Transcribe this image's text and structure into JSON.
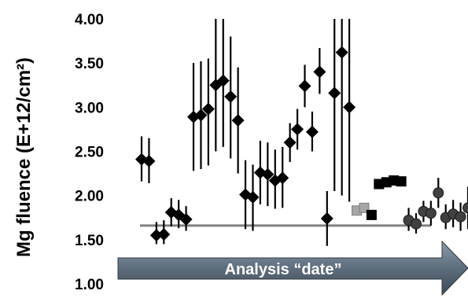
{
  "chart_data": {
    "type": "scatter",
    "title": "",
    "xlabel": "",
    "ylabel": "Mg fluence (E+12/cm²)",
    "ylim": [
      1.0,
      4.0
    ],
    "yticks": [
      "1.00",
      "1.50",
      "2.00",
      "2.50",
      "3.00",
      "3.50",
      "4.00"
    ],
    "grid": false,
    "x_axis_arrow_label": "Analysis “date”",
    "reference_line": {
      "y": 1.66,
      "color": "#808080"
    },
    "series": [
      {
        "marker": "diamond",
        "color": "#000000",
        "points": [
          {
            "x": 1,
            "y": 2.41,
            "lo": 2.16,
            "hi": 2.67
          },
          {
            "x": 2,
            "y": 2.39,
            "lo": 2.14,
            "hi": 2.65
          },
          {
            "x": 3,
            "y": 1.55,
            "lo": 1.45,
            "hi": 1.7
          },
          {
            "x": 4,
            "y": 1.56,
            "lo": 1.45,
            "hi": 1.72
          },
          {
            "x": 5,
            "y": 1.81,
            "lo": 1.65,
            "hi": 1.97
          },
          {
            "x": 6,
            "y": 1.78,
            "lo": 1.63,
            "hi": 1.95
          },
          {
            "x": 7,
            "y": 1.73,
            "lo": 1.6,
            "hi": 1.88
          },
          {
            "x": 8,
            "y": 2.89,
            "lo": 2.28,
            "hi": 3.5
          },
          {
            "x": 9,
            "y": 2.91,
            "lo": 2.3,
            "hi": 3.52
          },
          {
            "x": 10,
            "y": 2.98,
            "lo": 2.34,
            "hi": 3.55
          },
          {
            "x": 11,
            "y": 3.25,
            "lo": 2.5,
            "hi": 4.0
          },
          {
            "x": 12,
            "y": 3.3,
            "lo": 2.55,
            "hi": 4.0
          },
          {
            "x": 13,
            "y": 3.12,
            "lo": 2.42,
            "hi": 3.8
          },
          {
            "x": 14,
            "y": 2.85,
            "lo": 2.25,
            "hi": 3.45
          },
          {
            "x": 15,
            "y": 2.01,
            "lo": 1.62,
            "hi": 2.4
          },
          {
            "x": 16,
            "y": 1.98,
            "lo": 1.6,
            "hi": 2.35
          },
          {
            "x": 17,
            "y": 2.26,
            "lo": 1.9,
            "hi": 2.62
          },
          {
            "x": 18,
            "y": 2.24,
            "lo": 1.88,
            "hi": 2.6
          },
          {
            "x": 19,
            "y": 2.17,
            "lo": 1.85,
            "hi": 2.52
          },
          {
            "x": 20,
            "y": 2.2,
            "lo": 1.86,
            "hi": 2.55
          },
          {
            "x": 21,
            "y": 2.6,
            "lo": 2.38,
            "hi": 2.82
          },
          {
            "x": 22,
            "y": 2.75,
            "lo": 2.52,
            "hi": 2.98
          },
          {
            "x": 23,
            "y": 3.24,
            "lo": 3.0,
            "hi": 3.48
          },
          {
            "x": 24,
            "y": 2.72,
            "lo": 2.5,
            "hi": 2.95
          },
          {
            "x": 25,
            "y": 3.4,
            "lo": 3.15,
            "hi": 3.67
          },
          {
            "x": 26,
            "y": 1.74,
            "lo": 1.43,
            "hi": 2.05
          },
          {
            "x": 27,
            "y": 3.16,
            "lo": 2.05,
            "hi": 4.0
          },
          {
            "x": 28,
            "y": 3.62,
            "lo": 2.0,
            "hi": 4.0
          },
          {
            "x": 29,
            "y": 3.0,
            "lo": 1.93,
            "hi": 4.0
          }
        ]
      },
      {
        "marker": "square",
        "color": "#a6a6a6",
        "points": [
          {
            "x": 30,
            "y": 1.83
          },
          {
            "x": 31,
            "y": 1.86
          }
        ]
      },
      {
        "marker": "square",
        "color": "#000000",
        "points": [
          {
            "x": 32,
            "y": 1.78
          },
          {
            "x": 33,
            "y": 2.13
          },
          {
            "x": 34,
            "y": 2.15
          },
          {
            "x": 35,
            "y": 2.17
          },
          {
            "x": 36,
            "y": 2.16
          }
        ]
      },
      {
        "marker": "circle",
        "color": "#404040",
        "points": [
          {
            "x": 37,
            "y": 1.72,
            "lo": 1.6,
            "hi": 1.86
          },
          {
            "x": 38,
            "y": 1.68,
            "lo": 1.57,
            "hi": 1.8
          },
          {
            "x": 39,
            "y": 1.82,
            "lo": 1.7,
            "hi": 1.94
          },
          {
            "x": 40,
            "y": 1.8,
            "lo": 1.66,
            "hi": 1.94
          },
          {
            "x": 41,
            "y": 2.03,
            "lo": 1.86,
            "hi": 2.2
          },
          {
            "x": 42,
            "y": 1.75,
            "lo": 1.62,
            "hi": 1.9
          },
          {
            "x": 43,
            "y": 1.79,
            "lo": 1.64,
            "hi": 1.95
          },
          {
            "x": 44,
            "y": 1.76,
            "lo": 1.6,
            "hi": 1.92
          },
          {
            "x": 45,
            "y": 1.86,
            "lo": 1.62,
            "hi": 2.1
          }
        ]
      }
    ]
  }
}
